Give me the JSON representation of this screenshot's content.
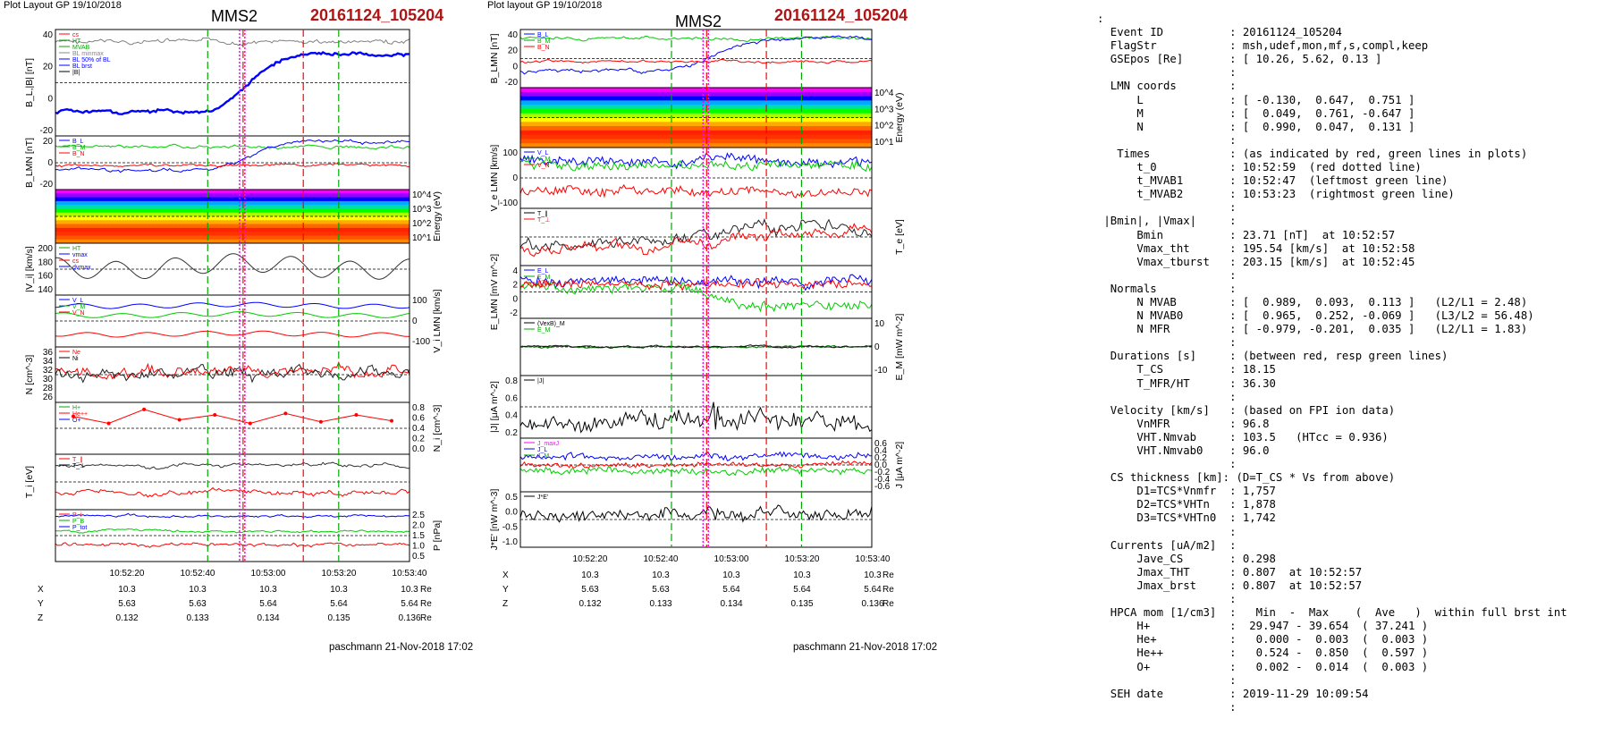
{
  "left": {
    "header": "Plot Layout GP 19/10/2018",
    "title": "MMS2",
    "event": "20161124_105204",
    "footer": "paschmann 21-Nov-2018 17:02",
    "time_ticks": [
      "10:52:20",
      "10:52:40",
      "10:53:00",
      "10:53:20",
      "10:53:40"
    ],
    "pos_rows": [
      {
        "label": "X",
        "values": [
          "10.3",
          "10.3",
          "10.3",
          "10.3",
          "10.3"
        ],
        "unit": "Re"
      },
      {
        "label": "Y",
        "values": [
          "5.63",
          "5.63",
          "5.64",
          "5.64",
          "5.64"
        ],
        "unit": "Re"
      },
      {
        "label": "Z",
        "values": [
          "0.132",
          "0.133",
          "0.134",
          "0.135",
          "0.136"
        ],
        "unit": "Re"
      }
    ],
    "panels": [
      {
        "ylabel": "B_L,|B| [nT]",
        "left_ticks": [
          "40",
          "20",
          "0",
          "-20"
        ],
        "right_ticks": [],
        "legend": [
          {
            "text": "cs",
            "color": "#ff0000"
          },
          {
            "text": "HT",
            "color": "#00aa00"
          },
          {
            "text": "MVAB",
            "color": "#00aa00"
          },
          {
            "text": "BL minmax",
            "color": "#888888"
          },
          {
            "text": "BL 50% of BL",
            "color": "#0000ff"
          },
          {
            "text": "BL brst",
            "color": "#0000ff"
          },
          {
            "text": "|B|",
            "color": "#000000"
          }
        ],
        "traces": [
          {
            "color": "#808080",
            "base": 0.12,
            "amp": 0.05,
            "profile": "flat"
          },
          {
            "color": "#0000ff",
            "base": 0.78,
            "amp": 0.04,
            "profile": "rise",
            "width": 2.4
          }
        ]
      },
      {
        "ylabel": "B_LMN [nT]",
        "left_ticks": [
          "20",
          "0",
          "-20"
        ],
        "right_ticks": [],
        "legend": [
          {
            "text": "B_L",
            "color": "#0000ff"
          },
          {
            "text": "B_M",
            "color": "#00aa00"
          },
          {
            "text": "B_N",
            "color": "#ff0000"
          }
        ],
        "traces": [
          {
            "color": "#00cc00",
            "base": 0.2,
            "amp": 0.06,
            "profile": "flat"
          },
          {
            "color": "#0000ff",
            "base": 0.65,
            "amp": 0.07,
            "profile": "rise"
          },
          {
            "color": "#ff0000",
            "base": 0.55,
            "amp": 0.05,
            "profile": "flat"
          }
        ]
      },
      {
        "ylabel": "",
        "left_ticks": [],
        "right_ticks": [
          "10^4",
          "10^3",
          "10^2",
          "10^1"
        ],
        "right_label": "Energy (eV)",
        "spectro": true,
        "legend": [],
        "traces": []
      },
      {
        "ylabel": "|V_i| [km/s]",
        "left_ticks": [
          "200",
          "180",
          "160",
          "140"
        ],
        "right_ticks": [],
        "legend": [
          {
            "text": "HT",
            "color": "#00aa00"
          },
          {
            "text": "vmax",
            "color": "#0000ff"
          },
          {
            "text": "cs",
            "color": "#ff0000"
          },
          {
            "text": "dvmax",
            "color": "#0000ff"
          }
        ],
        "traces": [
          {
            "color": "#333333",
            "base": 0.45,
            "amp": 0.25,
            "profile": "flat",
            "smooth": true
          }
        ]
      },
      {
        "ylabel": "",
        "left_ticks": [],
        "right_ticks": [
          "100",
          "0",
          "-100"
        ],
        "right_label": "V_i LMN [km/s]",
        "legend": [
          {
            "text": "V_L",
            "color": "#0000ff"
          },
          {
            "text": "V_M",
            "color": "#00aa00"
          },
          {
            "text": "V_N",
            "color": "#ff0000"
          }
        ],
        "traces": [
          {
            "color": "#0000ff",
            "base": 0.2,
            "amp": 0.06,
            "profile": "flat",
            "smooth": true
          },
          {
            "color": "#00cc00",
            "base": 0.38,
            "amp": 0.06,
            "profile": "flat",
            "smooth": true
          },
          {
            "color": "#ff0000",
            "base": 0.75,
            "amp": 0.06,
            "profile": "flat",
            "smooth": true
          }
        ]
      },
      {
        "ylabel": "N [cm^-3]",
        "left_ticks": [
          "36",
          "34",
          "32",
          "30",
          "28",
          "26"
        ],
        "right_ticks": [],
        "legend": [
          {
            "text": "Ne",
            "color": "#ff0000"
          },
          {
            "text": "Ni",
            "color": "#000000"
          }
        ],
        "traces": [
          {
            "color": "#ff0000",
            "base": 0.45,
            "amp": 0.22,
            "profile": "flat"
          },
          {
            "color": "#222222",
            "base": 0.5,
            "amp": 0.25,
            "profile": "flat"
          }
        ]
      },
      {
        "ylabel": "",
        "left_ticks": [],
        "right_ticks": [
          "0.8",
          "0.6",
          "0.4",
          "0.2",
          "0.0"
        ],
        "right_label": "N_i [cm^-3]",
        "legend": [
          {
            "text": "H+",
            "color": "#00aa00"
          },
          {
            "text": "He++",
            "color": "#ff0000"
          },
          {
            "text": "O+",
            "color": "#0000ff"
          }
        ],
        "traces": []
      },
      {
        "ylabel": "T_i [eV]",
        "left_ticks": [],
        "right_ticks": [],
        "legend": [
          {
            "text": "T_∥",
            "color": "#ff0000"
          },
          {
            "text": "T_⊥",
            "color": "#000000"
          }
        ],
        "traces": [
          {
            "color": "#333333",
            "base": 0.2,
            "amp": 0.08,
            "profile": "flat"
          },
          {
            "color": "#ff0000",
            "base": 0.7,
            "amp": 0.1,
            "profile": "flat"
          }
        ]
      },
      {
        "ylabel": "",
        "left_ticks": [],
        "right_ticks": [
          "2.5",
          "2.0",
          "1.5",
          "1.0",
          "0.5"
        ],
        "right_label": "P [nPa]",
        "legend": [
          {
            "text": "P_i",
            "color": "#ff0000"
          },
          {
            "text": "P_B",
            "color": "#00aa00"
          },
          {
            "text": "P_tot",
            "color": "#0000ff"
          }
        ],
        "traces": [
          {
            "color": "#0000ff",
            "base": 0.12,
            "amp": 0.05,
            "profile": "flat"
          },
          {
            "color": "#00cc00",
            "base": 0.42,
            "amp": 0.05,
            "profile": "flat"
          },
          {
            "color": "#ff0000",
            "base": 0.68,
            "amp": 0.08,
            "profile": "flat"
          }
        ]
      }
    ]
  },
  "right": {
    "header": "Plot layout GP 19/10/2018",
    "title": "MMS2",
    "event": "20161124_105204",
    "footer": "paschmann 21-Nov-2018 17:02",
    "time_ticks": [
      "10:52:20",
      "10:52:40",
      "10:53:00",
      "10:53:20",
      "10:53:40"
    ],
    "pos_rows": [
      {
        "label": "X",
        "values": [
          "10.3",
          "10.3",
          "10.3",
          "10.3",
          "10.3"
        ],
        "unit": "Re"
      },
      {
        "label": "Y",
        "values": [
          "5.63",
          "5.63",
          "5.64",
          "5.64",
          "5.64"
        ],
        "unit": "Re"
      },
      {
        "label": "Z",
        "values": [
          "0.132",
          "0.133",
          "0.134",
          "0.135",
          "0.136"
        ],
        "unit": "Re"
      }
    ],
    "panels": [
      {
        "ylabel": "B_LMN [nT]",
        "left_ticks": [
          "40",
          "20",
          "0",
          "-20"
        ],
        "right_ticks": [],
        "legend": [
          {
            "text": "B_L",
            "color": "#0000ff"
          },
          {
            "text": "B_M",
            "color": "#00aa00"
          },
          {
            "text": "B_N",
            "color": "#ff0000"
          }
        ],
        "traces": [
          {
            "color": "#00cc00",
            "base": 0.15,
            "amp": 0.06,
            "profile": "flat"
          },
          {
            "color": "#0000ff",
            "base": 0.72,
            "amp": 0.07,
            "profile": "rise"
          },
          {
            "color": "#ff0000",
            "base": 0.55,
            "amp": 0.05,
            "profile": "flat"
          }
        ]
      },
      {
        "ylabel": "",
        "left_ticks": [],
        "right_ticks": [
          "10^4",
          "10^3",
          "10^2",
          "10^1"
        ],
        "right_label": "Energy (eV)",
        "spectro": true,
        "legend": [],
        "traces": []
      },
      {
        "ylabel": "V_e LMN [km/s]",
        "left_ticks": [
          "100",
          "0",
          "-100"
        ],
        "right_ticks": [],
        "legend": [
          {
            "text": "V_L",
            "color": "#0000ff"
          },
          {
            "text": "V_M",
            "color": "#00aa00"
          },
          {
            "text": "V_N",
            "color": "#ff0000"
          }
        ],
        "traces": [
          {
            "color": "#0000ff",
            "base": 0.22,
            "amp": 0.1,
            "profile": "flat",
            "noisy": true
          },
          {
            "color": "#00cc00",
            "base": 0.3,
            "amp": 0.1,
            "profile": "flat",
            "noisy": true
          },
          {
            "color": "#ff0000",
            "base": 0.72,
            "amp": 0.1,
            "profile": "flat",
            "noisy": true
          }
        ]
      },
      {
        "ylabel": "",
        "left_ticks": [],
        "right_ticks": [],
        "right_label": "T_e [eV]",
        "legend": [
          {
            "text": "T_∥",
            "color": "#000000"
          },
          {
            "text": "T_⊥",
            "color": "#ff0000"
          }
        ],
        "traces": [
          {
            "color": "#222222",
            "base": 0.5,
            "amp": 0.25,
            "profile": "fall"
          },
          {
            "color": "#ff0000",
            "base": 0.6,
            "amp": 0.22,
            "profile": "fall"
          }
        ]
      },
      {
        "ylabel": "E_LMN [mV m^-2]",
        "left_ticks": [
          "4",
          "2",
          "0",
          "-2"
        ],
        "right_ticks": [],
        "legend": [
          {
            "text": "E_L",
            "color": "#0000ff"
          },
          {
            "text": "E_M",
            "color": "#00aa00"
          },
          {
            "text": "E_N",
            "color": "#ff0000"
          }
        ],
        "traces": [
          {
            "color": "#0000ff",
            "base": 0.3,
            "amp": 0.12,
            "profile": "flat",
            "noisy": true
          },
          {
            "color": "#00cc00",
            "base": 0.4,
            "amp": 0.12,
            "profile": "drop",
            "noisy": true
          },
          {
            "color": "#ff0000",
            "base": 0.35,
            "amp": 0.12,
            "profile": "flat",
            "noisy": true
          }
        ]
      },
      {
        "ylabel": "",
        "left_ticks": [],
        "right_ticks": [
          "10",
          "0",
          "-10"
        ],
        "right_label": "E_M [mW m^-2]",
        "legend": [
          {
            "text": "(VexB)_M",
            "color": "#000000"
          },
          {
            "text": "E_M",
            "color": "#00aa00"
          }
        ],
        "traces": [
          {
            "color": "#007700",
            "base": 0.5,
            "amp": 0.04,
            "profile": "flat"
          },
          {
            "color": "#111111",
            "base": 0.5,
            "amp": 0.04,
            "profile": "flat"
          }
        ]
      },
      {
        "ylabel": "|J| [μA m^-2]",
        "left_ticks": [
          "0.8",
          "0.6",
          "0.4",
          "0.2"
        ],
        "right_ticks": [],
        "legend": [
          {
            "text": "|J|",
            "color": "#000000"
          }
        ],
        "traces": [
          {
            "color": "#000000",
            "base": 0.75,
            "amp": 0.18,
            "profile": "spike",
            "noisy": true
          }
        ]
      },
      {
        "ylabel": "",
        "left_ticks": [],
        "right_ticks": [
          "0.6",
          "0.4",
          "0.2",
          "0.0",
          "-0.2",
          "-0.4",
          "-0.6"
        ],
        "right_label": "J [μA m^-2]",
        "legend": [
          {
            "text": "J_maxJ",
            "color": "#ff00ff"
          },
          {
            "text": "J_L",
            "color": "#0000ff"
          },
          {
            "text": "J_M",
            "color": "#00aa00"
          }
        ],
        "traces": [
          {
            "color": "#0000ff",
            "base": 0.35,
            "amp": 0.08,
            "profile": "flat",
            "noisy": true
          },
          {
            "color": "#ff0000",
            "base": 0.5,
            "amp": 0.06,
            "profile": "flat",
            "noisy": true
          },
          {
            "color": "#00cc00",
            "base": 0.6,
            "amp": 0.08,
            "profile": "flat",
            "noisy": true
          }
        ]
      },
      {
        "ylabel": "J*E' [nW m^-3]",
        "left_ticks": [
          "0.5",
          "0.0",
          "-0.5",
          "-1.0"
        ],
        "right_ticks": [],
        "legend": [
          {
            "text": "J*E'",
            "color": "#000000"
          }
        ],
        "traces": [
          {
            "color": "#000000",
            "base": 0.42,
            "amp": 0.14,
            "profile": "spike",
            "noisy": true
          }
        ]
      }
    ]
  },
  "info_lines": [
    ":",
    "  Event ID          : 20161124_105204",
    "  FlagStr           : msh,udef,mon,mf,s,compl,keep",
    "  GSEpos [Re]       : [ 10.26, 5.62, 0.13 ]",
    "                    :",
    "  LMN coords        :",
    "      L             : [ -0.130,  0.647,  0.751 ]",
    "      M             : [  0.049,  0.761, -0.647 ]",
    "      N             : [  0.990,  0.047,  0.131 ]",
    "                    :",
    "   Times            : (as indicated by red, green lines in plots)",
    "      t_0           : 10:52:59  (red dotted line)",
    "      t_MVAB1       : 10:52:47  (leftmost green line)",
    "      t_MVAB2       : 10:53:23  (rightmost green line)",
    "                    :",
    " |Bmin|, |Vmax|     :",
    "      Bmin          : 23.71 [nT]  at 10:52:57",
    "      Vmax_tht      : 195.54 [km/s]  at 10:52:58",
    "      Vmax_tburst   : 203.15 [km/s]  at 10:52:45",
    "                    :",
    "  Normals           :",
    "      N MVAB        : [  0.989,  0.093,  0.113 ]   (L2/L1 = 2.48)",
    "      N MVAB0       : [  0.965,  0.252, -0.069 ]   (L3/L2 = 56.48)",
    "      N MFR         : [ -0.979, -0.201,  0.035 ]   (L2/L1 = 1.83)",
    "                    :",
    "  Durations [s]     : (between red, resp green lines)",
    "      T_CS          : 18.15",
    "      T_MFR/HT      : 36.30",
    "                    :",
    "  Velocity [km/s]   : (based on FPI ion data)",
    "      VnMFR         : 96.8",
    "      VHT.Nmvab     : 103.5   (HTcc = 0.936)",
    "      VHT.Nmvab0    : 96.0",
    "                    :",
    "  CS thickness [km]: (D=T_CS * Vs from above)",
    "      D1=TCS*Vnmfr  : 1,757",
    "      D2=TCS*VHTn   : 1,878",
    "      D3=TCS*VHTn0  : 1,742",
    "                    :",
    "  Currents [uA/m2]  :",
    "      Jave_CS       : 0.298",
    "      Jmax_THT      : 0.807  at 10:52:57",
    "      Jmax_brst     : 0.807  at 10:52:57",
    "                    :",
    "  HPCA mom [1/cm3]  :   Min  -  Max    (  Ave   )  within full brst int",
    "      H+            :  29.947 - 39.654  ( 37.241 )",
    "      He+           :   0.000 -  0.003  (  0.003 )",
    "      He++          :   0.524 -  0.850  (  0.597 )",
    "      O+            :   0.002 -  0.014  (  0.003 )",
    "                    :",
    "  SEH date          : 2019-11-29 10:09:54",
    "                    :"
  ],
  "chart_data": [
    {
      "type": "line",
      "title": "MMS2",
      "subtitle": "20161124_105204",
      "x_ticks": [
        "10:52:20",
        "10:52:40",
        "10:53:00",
        "10:53:20",
        "10:53:40"
      ],
      "panels": [
        "B_L,|B| [nT]",
        "B_LMN [nT]",
        "Energy (eV)",
        "|V_i| [km/s]",
        "V_i LMN [km/s]",
        "N [cm^-3]",
        "N_i [cm^-3]",
        "T_i [eV]",
        "P [nPa]"
      ],
      "markers": {
        "green_dashed": [
          "10:52:47",
          "10:53:23"
        ],
        "red_dashed": [
          "10:52:59",
          "10:53:17"
        ],
        "magenta_dotted": [
          "10:52:57",
          "10:52:59"
        ]
      },
      "ni_he_pp": {
        "t": [
          "10:52:02",
          "10:52:12",
          "10:52:22",
          "10:52:32",
          "10:52:42",
          "10:52:52",
          "10:53:02",
          "10:53:12",
          "10:53:22",
          "10:53:32"
        ],
        "values": [
          0.69,
          0.55,
          0.83,
          0.62,
          0.72,
          0.55,
          0.75,
          0.58,
          0.72,
          0.6
        ]
      }
    },
    {
      "type": "line",
      "title": "MMS2",
      "subtitle": "20161124_105204",
      "x_ticks": [
        "10:52:20",
        "10:52:40",
        "10:53:00",
        "10:53:20",
        "10:53:40"
      ],
      "panels": [
        "B_LMN [nT]",
        "Energy (eV)",
        "V_e LMN [km/s]",
        "T_e [eV]",
        "E_LMN [mV m^-2]",
        "E_M [mW m^-2]",
        "|J| [μA m^-2]",
        "J [μA m^-2]",
        "J*E' [nW m^-3]"
      ]
    }
  ]
}
